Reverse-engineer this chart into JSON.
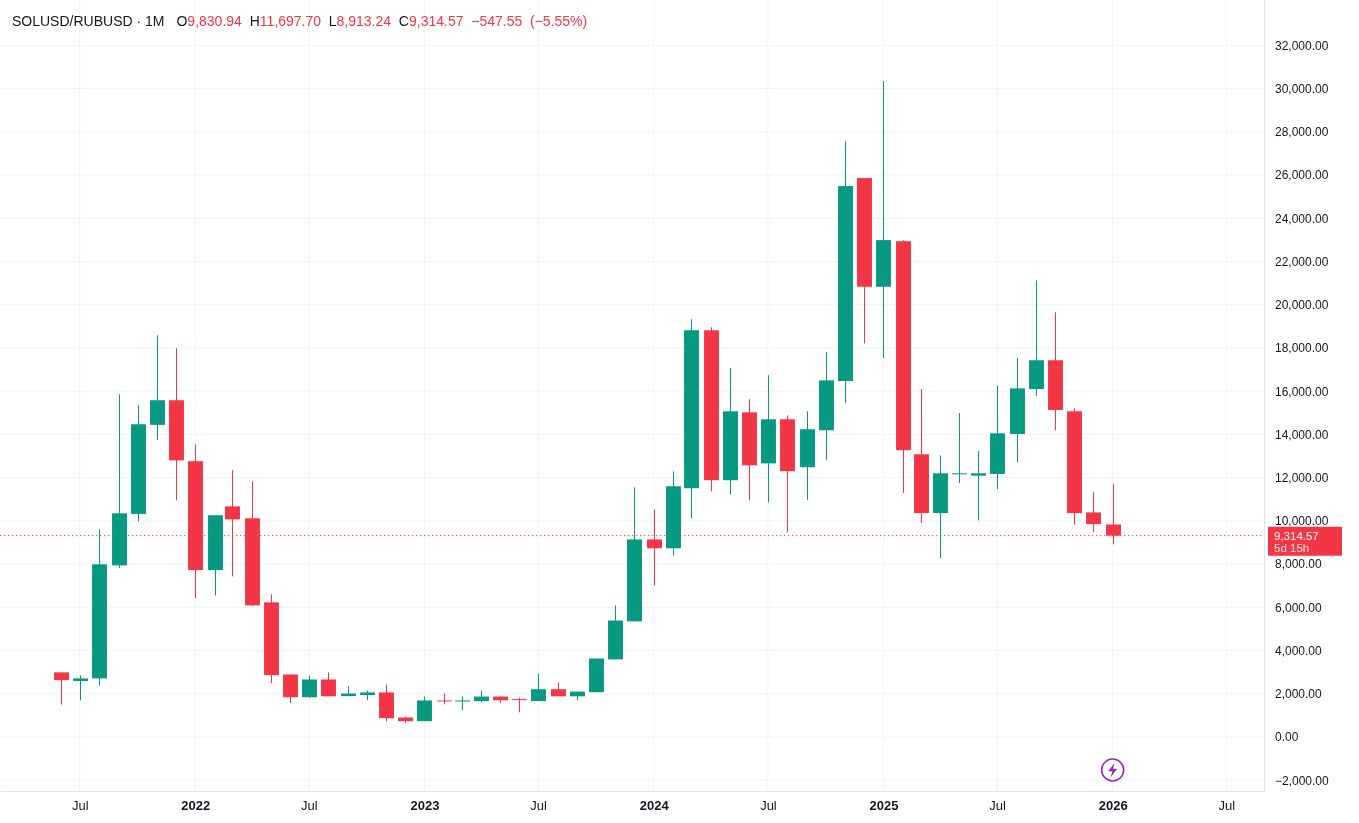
{
  "chart_data": {
    "type": "candlestick",
    "title": "SOLUSD/RUBUSD · 1M",
    "subtitle": "O9,830.94 H11,697.70 L8,913.24 C9,314.57 −547.55 (−5.55%)",
    "x": [
      "2021-06",
      "2021-07",
      "2021-08",
      "2021-09",
      "2021-10",
      "2021-11",
      "2021-12",
      "2022-01",
      "2022-02",
      "2022-03",
      "2022-04",
      "2022-05",
      "2022-06",
      "2022-07",
      "2022-08",
      "2022-09",
      "2022-10",
      "2022-11",
      "2022-12",
      "2023-01",
      "2023-02",
      "2023-03",
      "2023-04",
      "2023-05",
      "2023-06",
      "2023-07",
      "2023-08",
      "2023-09",
      "2023-10",
      "2023-11",
      "2023-12",
      "2024-01",
      "2024-02",
      "2024-03",
      "2024-04",
      "2024-05",
      "2024-06",
      "2024-07",
      "2024-08",
      "2024-09",
      "2024-10",
      "2024-11",
      "2024-12",
      "2025-01",
      "2025-02",
      "2025-03",
      "2025-04",
      "2025-05",
      "2025-06",
      "2025-07",
      "2025-08",
      "2025-09",
      "2025-10",
      "2025-11",
      "2025-12",
      "2026-01"
    ],
    "ohlc": [
      [
        2990,
        2990,
        1500,
        2630
      ],
      [
        2590,
        2850,
        1690,
        2710
      ],
      [
        2710,
        9610,
        2380,
        7990
      ],
      [
        7940,
        15860,
        7820,
        10350
      ],
      [
        10320,
        15350,
        9980,
        14470
      ],
      [
        14440,
        18590,
        13730,
        15580
      ],
      [
        15580,
        17990,
        10950,
        12800
      ],
      [
        12760,
        13540,
        6430,
        7720
      ],
      [
        7720,
        10260,
        6550,
        10260
      ],
      [
        10670,
        12340,
        7430,
        10070
      ],
      [
        10120,
        11830,
        6060,
        6090
      ],
      [
        6230,
        6600,
        2490,
        2860
      ],
      [
        2890,
        2890,
        1560,
        1840
      ],
      [
        1840,
        2850,
        1800,
        2660
      ],
      [
        2660,
        2990,
        1880,
        1880
      ],
      [
        1890,
        2340,
        1890,
        2010
      ],
      [
        1940,
        2150,
        1700,
        2060
      ],
      [
        2060,
        2430,
        730,
        870
      ],
      [
        900,
        950,
        640,
        730
      ],
      [
        730,
        1870,
        730,
        1690
      ],
      [
        1690,
        2010,
        1510,
        1650
      ],
      [
        1660,
        1870,
        1230,
        1690
      ],
      [
        1660,
        2150,
        1600,
        1870
      ],
      [
        1870,
        1870,
        1570,
        1700
      ],
      [
        1750,
        1820,
        1140,
        1710
      ],
      [
        1660,
        2940,
        1660,
        2210
      ],
      [
        2210,
        2520,
        1880,
        1880
      ],
      [
        1880,
        2100,
        1700,
        2100
      ],
      [
        2070,
        3630,
        2070,
        3630
      ],
      [
        3590,
        6090,
        3590,
        5390
      ],
      [
        5350,
        11550,
        5350,
        9140
      ],
      [
        9140,
        10530,
        7010,
        8730
      ],
      [
        8730,
        12290,
        8400,
        11600
      ],
      [
        11510,
        19330,
        10120,
        18820
      ],
      [
        18820,
        18960,
        11370,
        11880
      ],
      [
        11880,
        17060,
        11230,
        15070
      ],
      [
        15020,
        15630,
        10950,
        12570
      ],
      [
        12660,
        16740,
        10860,
        14700
      ],
      [
        14700,
        14880,
        9470,
        12300
      ],
      [
        12480,
        15070,
        10960,
        14240
      ],
      [
        14190,
        17800,
        12820,
        16500
      ],
      [
        16470,
        27560,
        15460,
        25490
      ],
      [
        25860,
        25860,
        18210,
        20830
      ],
      [
        20830,
        30350,
        17540,
        22990
      ],
      [
        22940,
        22990,
        11290,
        13270
      ],
      [
        13080,
        16090,
        9900,
        10360
      ],
      [
        10360,
        13030,
        8280,
        12200
      ],
      [
        12170,
        14990,
        11750,
        12200
      ],
      [
        12090,
        13230,
        10020,
        12200
      ],
      [
        12170,
        16240,
        11470,
        14050
      ],
      [
        14020,
        17540,
        12720,
        16130
      ],
      [
        16100,
        21130,
        15780,
        17430
      ],
      [
        17430,
        19650,
        14200,
        15130
      ],
      [
        15070,
        15210,
        9820,
        10360
      ],
      [
        10390,
        11330,
        9480,
        9850
      ],
      [
        9830.94,
        11697.7,
        8913.24,
        9314.57
      ]
    ],
    "colors": [
      "#f23645",
      "#089981",
      "#089981",
      "#089981",
      "#089981",
      "#089981",
      "#f23645",
      "#f23645",
      "#089981",
      "#f23645",
      "#f23645",
      "#f23645",
      "#f23645",
      "#089981",
      "#f23645",
      "#089981",
      "#089981",
      "#f23645",
      "#f23645",
      "#089981",
      "#f23645",
      "#089981",
      "#089981",
      "#f23645",
      "#f23645",
      "#089981",
      "#f23645",
      "#089981",
      "#089981",
      "#089981",
      "#089981",
      "#f23645",
      "#089981",
      "#089981",
      "#f23645",
      "#089981",
      "#f23645",
      "#089981",
      "#f23645",
      "#089981",
      "#089981",
      "#089981",
      "#f23645",
      "#089981",
      "#f23645",
      "#f23645",
      "#089981",
      "#089981",
      "#089981",
      "#089981",
      "#089981",
      "#089981",
      "#f23645",
      "#f23645",
      "#f23645",
      "#f23645"
    ],
    "xlim": [
      "2021-02-24",
      "2026-08-30"
    ],
    "xticks": [
      {
        "value": "2021-07",
        "label": "Jul"
      },
      {
        "value": "2022-01",
        "label": "2022"
      },
      {
        "value": "2022-07",
        "label": "Jul"
      },
      {
        "value": "2023-01",
        "label": "2023"
      },
      {
        "value": "2023-07",
        "label": "Jul"
      },
      {
        "value": "2024-01",
        "label": "2024"
      },
      {
        "value": "2024-07",
        "label": "Jul"
      },
      {
        "value": "2025-01",
        "label": "2025"
      },
      {
        "value": "2025-07",
        "label": "Jul"
      },
      {
        "value": "2026-01",
        "label": "2026"
      },
      {
        "value": "2026-07",
        "label": "Jul"
      }
    ],
    "ylim": [
      -2500,
      34100
    ],
    "yticks": [
      {
        "value": -2000,
        "label": "−2,000.00"
      },
      {
        "value": 0,
        "label": "0.00"
      },
      {
        "value": 2000,
        "label": "2,000.00"
      },
      {
        "value": 4000,
        "label": "4,000.00"
      },
      {
        "value": 6000,
        "label": "6,000.00"
      },
      {
        "value": 8000,
        "label": "8,000.00"
      },
      {
        "value": 10000,
        "label": "10,000.00"
      },
      {
        "value": 12000,
        "label": "12,000.00"
      },
      {
        "value": 14000,
        "label": "14,000.00"
      },
      {
        "value": 16000,
        "label": "16,000.00"
      },
      {
        "value": 18000,
        "label": "18,000.00"
      },
      {
        "value": 20000,
        "label": "20,000.00"
      },
      {
        "value": 22000,
        "label": "22,000.00"
      },
      {
        "value": 24000,
        "label": "24,000.00"
      },
      {
        "value": 26000,
        "label": "26,000.00"
      },
      {
        "value": 28000,
        "label": "28,000.00"
      },
      {
        "value": 30000,
        "label": "30,000.00"
      },
      {
        "value": 32000,
        "label": "32,000.00"
      }
    ],
    "grid": true,
    "ref_lines": [
      {
        "axis": "y",
        "value": 9314.57,
        "label": "9,314.57",
        "color": "#f23645",
        "line_style": "dotted"
      }
    ],
    "annotations": [
      "5d 15h"
    ]
  }
}
